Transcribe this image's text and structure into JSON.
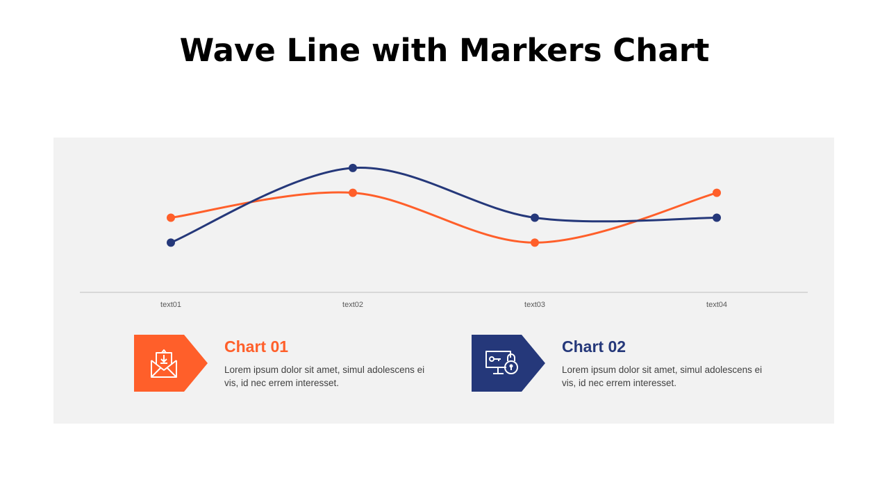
{
  "title": "Wave Line with Markers Chart",
  "chart_data": {
    "type": "line",
    "smooth": true,
    "markers": true,
    "categories": [
      "text01",
      "text02",
      "text03",
      "text04"
    ],
    "series": [
      {
        "values": [
          3,
          4,
          2,
          4
        ],
        "color": "#FF5F2A"
      },
      {
        "values": [
          2,
          5,
          3,
          3
        ],
        "color": "#25387A"
      }
    ],
    "ylim": [
      0,
      6
    ],
    "grid": false,
    "y_axis_labels": false
  },
  "cards": [
    {
      "title": "Chart 01",
      "text": "Lorem  ipsum dolor sit amet,  simul adolescens ei vis, id nec errem  interesset.",
      "color": "#FF5F2A",
      "icon": "envelope-download-icon"
    },
    {
      "title": "Chart 02",
      "text": "Lorem  ipsum dolor sit amet,  simul adolescens ei vis, id nec errem  interesset.",
      "color": "#25387A",
      "icon": "computer-key-lock-icon"
    }
  ]
}
